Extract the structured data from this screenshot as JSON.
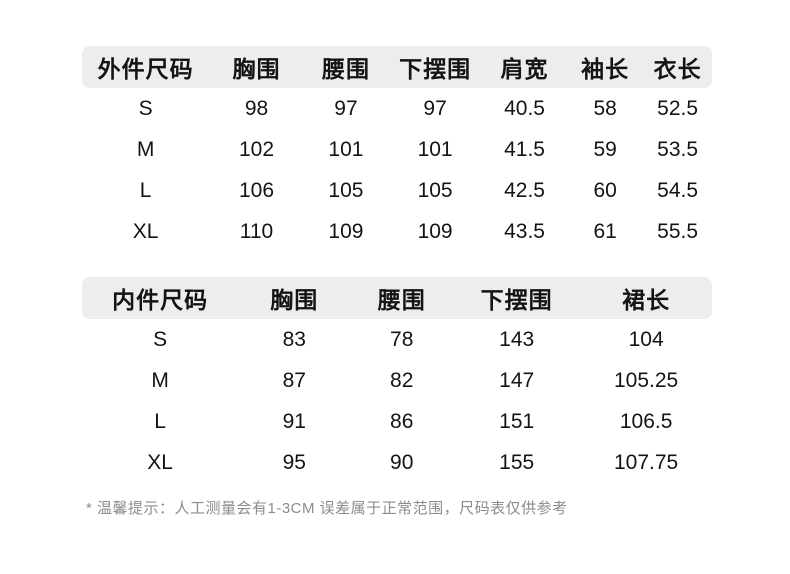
{
  "colors": {
    "header_bg": "#ededed",
    "text": "#141414",
    "note_text": "#8c8c8c",
    "page_bg": "#ffffff"
  },
  "outer_table": {
    "headers": [
      "外件尺码",
      "胸围",
      "腰围",
      "下摆围",
      "肩宽",
      "袖长",
      "衣长"
    ],
    "rows": [
      [
        "S",
        "98",
        "97",
        "97",
        "40.5",
        "58",
        "52.5"
      ],
      [
        "M",
        "102",
        "101",
        "101",
        "41.5",
        "59",
        "53.5"
      ],
      [
        "L",
        "106",
        "105",
        "105",
        "42.5",
        "60",
        "54.5"
      ],
      [
        "XL",
        "110",
        "109",
        "109",
        "43.5",
        "61",
        "55.5"
      ]
    ]
  },
  "inner_table": {
    "headers": [
      "内件尺码",
      "胸围",
      "腰围",
      "下摆围",
      "裙长"
    ],
    "rows": [
      [
        "S",
        "83",
        "78",
        "143",
        "104"
      ],
      [
        "M",
        "87",
        "82",
        "147",
        "105.25"
      ],
      [
        "L",
        "91",
        "86",
        "151",
        "106.5"
      ],
      [
        "XL",
        "95",
        "90",
        "155",
        "107.75"
      ]
    ]
  },
  "note": {
    "text": "* 温馨提示：人工测量会有1-3CM 误差属于正常范围，尺码表仅供参考"
  }
}
